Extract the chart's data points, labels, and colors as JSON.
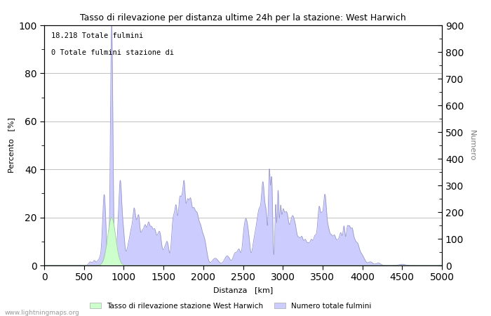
{
  "title": "Tasso di rilevazione per distanza ultime 24h per la stazione: West Harwich",
  "xlabel": "Distanza   [km]",
  "ylabel_left": "Percento   [%]",
  "ylabel_right": "Numero",
  "annotation_line1": "18.218 Totale fulmini",
  "annotation_line2": "0 Totale fulmini stazione di",
  "legend_label1": "Tasso di rilevazione stazione West Harwich",
  "legend_label2": "Numero totale fulmini",
  "watermark": "www.lightningmaps.org",
  "xlim": [
    0,
    5000
  ],
  "ylim_left": [
    0,
    100
  ],
  "ylim_right": [
    0,
    900
  ],
  "xticks": [
    0,
    500,
    1000,
    1500,
    2000,
    2500,
    3000,
    3500,
    4000,
    4500,
    5000
  ],
  "yticks_left": [
    0,
    20,
    40,
    60,
    80,
    100
  ],
  "yticks_right_major": [
    0,
    100,
    200,
    300,
    400,
    500,
    600,
    700,
    800,
    900
  ],
  "bg_color": "#ffffff",
  "grid_color": "#aaaaaa",
  "fill_color_blue": "#ccccff",
  "fill_color_green": "#ccffcc",
  "line_color_blue": "#9999cc",
  "line_color_green": "#99cc99"
}
